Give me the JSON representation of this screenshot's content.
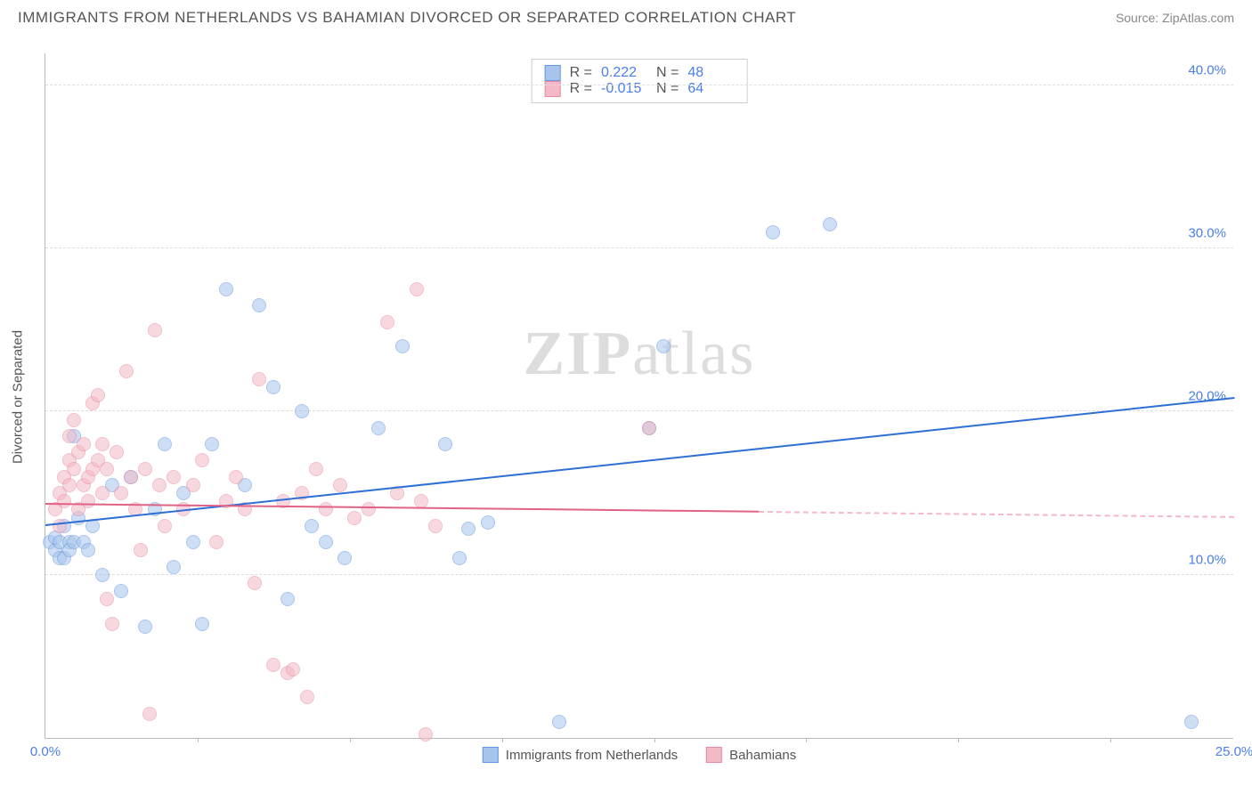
{
  "header": {
    "title": "IMMIGRANTS FROM NETHERLANDS VS BAHAMIAN DIVORCED OR SEPARATED CORRELATION CHART",
    "source": "Source: ZipAtlas.com"
  },
  "watermark": {
    "zip": "ZIP",
    "atlas": "atlas"
  },
  "chart": {
    "type": "scatter",
    "ylabel": "Divorced or Separated",
    "background_color": "#ffffff",
    "grid_color": "#dddddd",
    "axis_color": "#bbbbbb",
    "xlim": [
      0,
      25
    ],
    "ylim": [
      0,
      42
    ],
    "xticks": [
      0,
      25
    ],
    "xtick_labels": [
      "0.0%",
      "25.0%"
    ],
    "xtick_marks": [
      3.2,
      6.4,
      9.6,
      12.8,
      16.0,
      19.2,
      22.4
    ],
    "yticks": [
      10,
      20,
      30,
      40
    ],
    "ytick_labels": [
      "10.0%",
      "20.0%",
      "30.0%",
      "40.0%"
    ],
    "marker_radius": 8,
    "marker_opacity": 0.55,
    "series": [
      {
        "name": "Immigrants from Netherlands",
        "fill": "#a7c4ed",
        "stroke": "#6699dd",
        "line_color": "#2e6fd6",
        "R": "0.222",
        "N": "48",
        "trend": {
          "x0": 0,
          "y0": 13.0,
          "x1": 25,
          "y1": 20.8,
          "dash_from_x": null
        },
        "points": [
          [
            0.1,
            12.0
          ],
          [
            0.2,
            11.5
          ],
          [
            0.2,
            12.3
          ],
          [
            0.3,
            12.0
          ],
          [
            0.3,
            11.0
          ],
          [
            0.4,
            13.0
          ],
          [
            0.4,
            11.0
          ],
          [
            0.5,
            12.0
          ],
          [
            0.5,
            11.5
          ],
          [
            0.6,
            12.0
          ],
          [
            0.6,
            18.5
          ],
          [
            0.7,
            13.5
          ],
          [
            0.8,
            12.0
          ],
          [
            0.9,
            11.5
          ],
          [
            1.0,
            13.0
          ],
          [
            1.2,
            10.0
          ],
          [
            1.4,
            15.5
          ],
          [
            1.6,
            9.0
          ],
          [
            1.8,
            16.0
          ],
          [
            2.1,
            6.8
          ],
          [
            2.3,
            14.0
          ],
          [
            2.5,
            18.0
          ],
          [
            2.7,
            10.5
          ],
          [
            2.9,
            15.0
          ],
          [
            3.1,
            12.0
          ],
          [
            3.3,
            7.0
          ],
          [
            3.5,
            18.0
          ],
          [
            3.8,
            27.5
          ],
          [
            4.2,
            15.5
          ],
          [
            4.5,
            26.5
          ],
          [
            4.8,
            21.5
          ],
          [
            5.1,
            8.5
          ],
          [
            5.4,
            20.0
          ],
          [
            5.6,
            13.0
          ],
          [
            5.9,
            12.0
          ],
          [
            6.3,
            11.0
          ],
          [
            7.0,
            19.0
          ],
          [
            7.5,
            24.0
          ],
          [
            8.4,
            18.0
          ],
          [
            8.7,
            11.0
          ],
          [
            8.9,
            12.8
          ],
          [
            9.3,
            13.2
          ],
          [
            10.8,
            1.0
          ],
          [
            12.7,
            19.0
          ],
          [
            13.0,
            24.0
          ],
          [
            15.3,
            31.0
          ],
          [
            16.5,
            31.5
          ],
          [
            24.1,
            1.0
          ]
        ]
      },
      {
        "name": "Bahamians",
        "fill": "#f3b9c6",
        "stroke": "#e88aa0",
        "line_color": "#e06285",
        "R": "-0.015",
        "N": "64",
        "trend": {
          "x0": 0,
          "y0": 14.3,
          "x1": 25,
          "y1": 13.5,
          "dash_from_x": 15.0
        },
        "points": [
          [
            0.2,
            14.0
          ],
          [
            0.3,
            15.0
          ],
          [
            0.3,
            13.0
          ],
          [
            0.4,
            16.0
          ],
          [
            0.4,
            14.5
          ],
          [
            0.5,
            17.0
          ],
          [
            0.5,
            18.5
          ],
          [
            0.5,
            15.5
          ],
          [
            0.6,
            16.5
          ],
          [
            0.6,
            19.5
          ],
          [
            0.7,
            14.0
          ],
          [
            0.7,
            17.5
          ],
          [
            0.8,
            15.5
          ],
          [
            0.8,
            18.0
          ],
          [
            0.9,
            16.0
          ],
          [
            0.9,
            14.5
          ],
          [
            1.0,
            20.5
          ],
          [
            1.0,
            16.5
          ],
          [
            1.1,
            21.0
          ],
          [
            1.1,
            17.0
          ],
          [
            1.2,
            18.0
          ],
          [
            1.2,
            15.0
          ],
          [
            1.3,
            8.5
          ],
          [
            1.3,
            16.5
          ],
          [
            1.4,
            7.0
          ],
          [
            1.5,
            17.5
          ],
          [
            1.6,
            15.0
          ],
          [
            1.7,
            22.5
          ],
          [
            1.8,
            16.0
          ],
          [
            1.9,
            14.0
          ],
          [
            2.0,
            11.5
          ],
          [
            2.1,
            16.5
          ],
          [
            2.2,
            1.5
          ],
          [
            2.3,
            25.0
          ],
          [
            2.4,
            15.5
          ],
          [
            2.5,
            13.0
          ],
          [
            2.7,
            16.0
          ],
          [
            2.9,
            14.0
          ],
          [
            3.1,
            15.5
          ],
          [
            3.3,
            17.0
          ],
          [
            3.6,
            12.0
          ],
          [
            3.8,
            14.5
          ],
          [
            4.0,
            16.0
          ],
          [
            4.2,
            14.0
          ],
          [
            4.4,
            9.5
          ],
          [
            4.5,
            22.0
          ],
          [
            4.8,
            4.5
          ],
          [
            5.0,
            14.5
          ],
          [
            5.1,
            4.0
          ],
          [
            5.2,
            4.2
          ],
          [
            5.4,
            15.0
          ],
          [
            5.5,
            2.5
          ],
          [
            5.7,
            16.5
          ],
          [
            5.9,
            14.0
          ],
          [
            6.2,
            15.5
          ],
          [
            6.5,
            13.5
          ],
          [
            6.8,
            14.0
          ],
          [
            7.2,
            25.5
          ],
          [
            7.4,
            15.0
          ],
          [
            7.8,
            27.5
          ],
          [
            7.9,
            14.5
          ],
          [
            8.0,
            0.2
          ],
          [
            8.2,
            13.0
          ],
          [
            12.7,
            19.0
          ]
        ]
      }
    ],
    "stats_box": {
      "r_label": "R =",
      "n_label": "N ="
    },
    "legend_bottom_label_fontsize": 15
  }
}
